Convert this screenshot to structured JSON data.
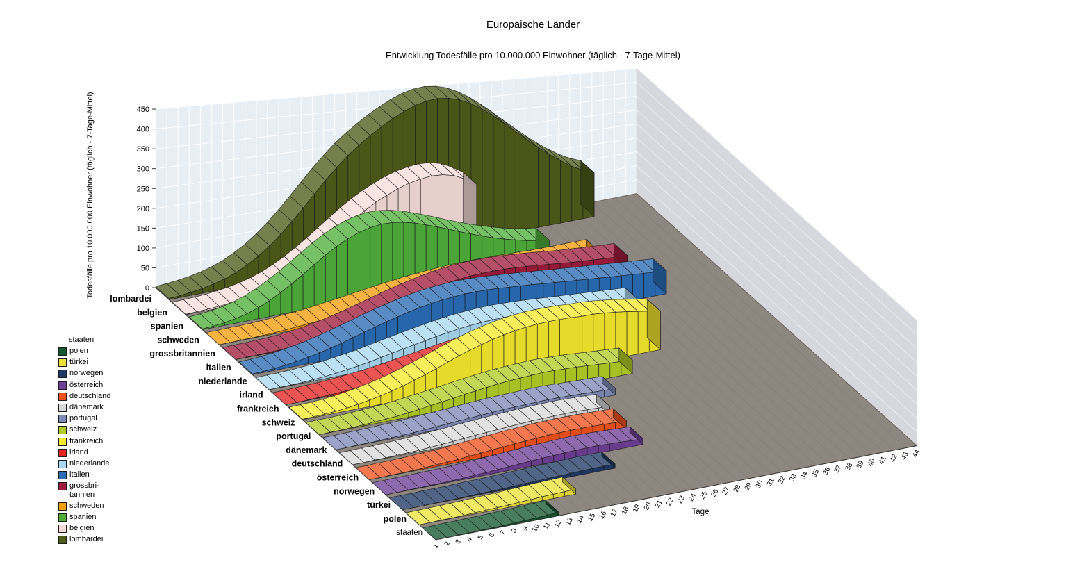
{
  "chart_data": {
    "type": "ribbon3d",
    "title": "Europäische Länder",
    "subtitle": "Entwicklung Todesfälle pro 10.000.000 Einwohner (täglich - 7-Tage-Mittel)",
    "legend_title": "staaten",
    "x_axis": {
      "title": "Tage",
      "ticks": [
        1,
        2,
        3,
        4,
        5,
        6,
        7,
        8,
        9,
        10,
        11,
        12,
        13,
        14,
        15,
        16,
        17,
        18,
        19,
        20,
        21,
        22,
        23,
        24,
        25,
        26,
        27,
        28,
        29,
        30,
        31,
        32,
        33,
        34,
        35,
        36,
        37,
        38,
        39,
        40,
        41,
        42,
        43,
        44
      ]
    },
    "y_axis": {
      "title": "Todesfälle pro 10.000.000 Einwohner (täglich - 7-Tage-Mittel)",
      "min": 0,
      "max": 450,
      "step": 50,
      "ticks": [
        0,
        50,
        100,
        150,
        200,
        250,
        300,
        350,
        400,
        450
      ]
    },
    "series_axis": {
      "title": "staaten"
    },
    "layout": {
      "legend_position": "left",
      "grid": true,
      "back_wall_color": "#e7eef4",
      "grid_line_color": "#ffffff",
      "right_wall_color": "#d7d8de",
      "floor_color": "#8e8780",
      "category_label_color": "#2e75b6"
    },
    "series_back_to_front": [
      {
        "name": "lombardei",
        "legend_label": "lombardei",
        "color": "#4f5c1a",
        "values": [
          3,
          5,
          8,
          12,
          18,
          26,
          37,
          52,
          70,
          92,
          118,
          148,
          180,
          214,
          248,
          280,
          310,
          336,
          360,
          382,
          402,
          420,
          435,
          445,
          450,
          448,
          440,
          425,
          405,
          380,
          352,
          322,
          292,
          262,
          234,
          208,
          184,
          165,
          150
        ]
      },
      {
        "name": "belgien",
        "legend_label": "belgien",
        "color": "#f6dcd8",
        "values": [
          1,
          2,
          3,
          5,
          8,
          12,
          18,
          26,
          36,
          50,
          66,
          85,
          106,
          129,
          152,
          175,
          196,
          215,
          231,
          246,
          257,
          265,
          270,
          269,
          262,
          247,
          226
        ]
      },
      {
        "name": "spanien",
        "legend_label": "spanien",
        "color": "#4fae3a",
        "values": [
          2,
          4,
          7,
          12,
          19,
          29,
          42,
          58,
          76,
          96,
          117,
          138,
          157,
          173,
          186,
          195,
          200,
          200,
          196,
          189,
          179,
          168,
          156,
          143,
          131,
          119,
          108,
          98,
          89,
          81,
          75,
          70
        ]
      },
      {
        "name": "schweden",
        "legend_label": "schweden",
        "color": "#f59e0b",
        "values": [
          0,
          0,
          1,
          1,
          2,
          3,
          5,
          7,
          9,
          12,
          16,
          20,
          24,
          29,
          33,
          38,
          42,
          46,
          50,
          53,
          56,
          58,
          60,
          61,
          62,
          62,
          62,
          61,
          61,
          60,
          60,
          60,
          61,
          61,
          62
        ]
      },
      {
        "name": "grossbritannien",
        "legend_label": "grossbri-\ntannien",
        "color": "#a01c3c",
        "values": [
          0,
          1,
          1,
          2,
          3,
          5,
          8,
          12,
          17,
          23,
          30,
          38,
          47,
          56,
          65,
          74,
          82,
          90,
          97,
          103,
          108,
          112,
          114,
          115,
          115,
          114,
          112,
          110,
          107,
          104,
          101,
          99,
          97,
          95,
          93,
          92
        ]
      },
      {
        "name": "italien",
        "legend_label": "italien",
        "color": "#2a6cb5",
        "values": [
          2,
          3,
          5,
          8,
          12,
          17,
          23,
          30,
          38,
          47,
          56,
          65,
          74,
          82,
          90,
          97,
          103,
          108,
          111,
          114,
          115,
          115,
          114,
          112,
          110,
          108,
          105,
          103,
          100,
          98,
          95,
          93,
          90,
          88,
          85,
          83,
          80,
          78
        ]
      },
      {
        "name": "niederlande",
        "legend_label": "niederlande",
        "color": "#a8d8f0",
        "values": [
          0,
          1,
          1,
          2,
          4,
          6,
          9,
          13,
          17,
          22,
          28,
          34,
          40,
          46,
          52,
          58,
          63,
          68,
          72,
          75,
          77,
          78,
          78,
          77,
          76,
          74,
          72,
          70,
          68,
          66,
          64,
          62,
          60,
          58
        ]
      },
      {
        "name": "irland",
        "legend_label": "irland",
        "color": "#e52421",
        "values": [
          0,
          0,
          1,
          2,
          3,
          5,
          7,
          10,
          13,
          17,
          21,
          26,
          31,
          36,
          41,
          46,
          51,
          56,
          60,
          63,
          66,
          68,
          69,
          70,
          70,
          69,
          68,
          66,
          64,
          62,
          60,
          58
        ]
      },
      {
        "name": "frankreich",
        "legend_label": "frankreich",
        "color": "#f5e92e",
        "values": [
          1,
          2,
          3,
          5,
          8,
          12,
          17,
          23,
          30,
          38,
          48,
          58,
          69,
          81,
          93,
          104,
          114,
          123,
          131,
          138,
          143,
          147,
          149,
          150,
          150,
          149,
          150,
          148,
          145,
          141,
          136,
          131,
          125
        ]
      },
      {
        "name": "schweiz",
        "legend_label": "schweiz",
        "color": "#b2cc26",
        "values": [
          0,
          1,
          1,
          2,
          3,
          5,
          7,
          9,
          12,
          16,
          20,
          24,
          28,
          33,
          37,
          41,
          45,
          48,
          50,
          52,
          54,
          54,
          53,
          52,
          50,
          48,
          46,
          44,
          42
        ]
      },
      {
        "name": "portugal",
        "legend_label": "portugal",
        "color": "#7f8ab8",
        "values": [
          0,
          0,
          1,
          1,
          2,
          3,
          4,
          5,
          7,
          9,
          11,
          13,
          15,
          17,
          19,
          21,
          22,
          23,
          24,
          25,
          25,
          24,
          23,
          22,
          21,
          20
        ]
      },
      {
        "name": "dänemark",
        "legend_label": "dänemark",
        "color": "#d8d8d8",
        "values": [
          0,
          0,
          1,
          1,
          2,
          3,
          4,
          6,
          8,
          10,
          12,
          15,
          17,
          19,
          21,
          23,
          25,
          26,
          27,
          28,
          28,
          27,
          26,
          24
        ]
      },
      {
        "name": "deutschland",
        "legend_label": "deutschland",
        "color": "#f0521e",
        "values": [
          0,
          0,
          1,
          1,
          2,
          3,
          5,
          6,
          8,
          11,
          13,
          16,
          18,
          21,
          23,
          25,
          27,
          28,
          29,
          29,
          29,
          28,
          27,
          26
        ]
      },
      {
        "name": "österreich",
        "legend_label": "österreich",
        "color": "#6f3f96",
        "values": [
          0,
          0,
          1,
          1,
          2,
          2,
          3,
          4,
          6,
          7,
          9,
          11,
          13,
          15,
          17,
          18,
          20,
          21,
          22,
          22,
          21,
          20,
          18,
          17
        ]
      },
      {
        "name": "norwegen",
        "legend_label": "norwegen",
        "color": "#203a68",
        "values": [
          0,
          0,
          0,
          1,
          1,
          1,
          2,
          3,
          3,
          4,
          5,
          6,
          7,
          8,
          9,
          10,
          11,
          12,
          12,
          12
        ]
      },
      {
        "name": "türkei",
        "legend_label": "türkei",
        "color": "#eae239",
        "values": [
          0,
          0,
          1,
          1,
          2,
          3,
          4,
          5,
          6,
          8,
          9,
          11,
          12,
          13,
          14
        ]
      },
      {
        "name": "polen",
        "legend_label": "polen",
        "color": "#14582f",
        "values": [
          0,
          0,
          1,
          1,
          2,
          2,
          3,
          4,
          5,
          6,
          8,
          9
        ]
      }
    ]
  }
}
